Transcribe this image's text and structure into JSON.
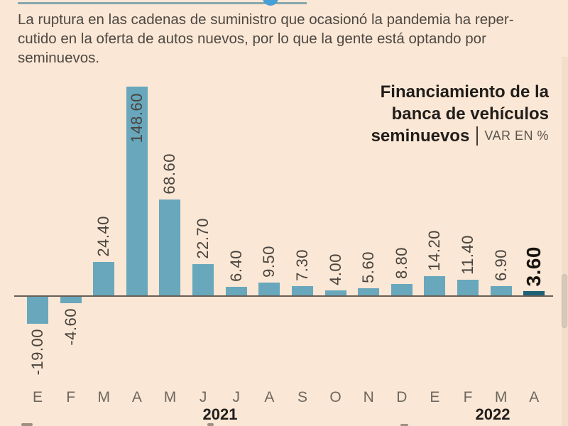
{
  "page": {
    "background_color": "#fae7d5",
    "accent_rule_color": "#87a7ae",
    "logo_dot_color": "#479fd8"
  },
  "intro": {
    "lines": [
      "La ruptura en las cadenas de suministro que ocasionó la pandemia ha reper-",
      "cutido en la oferta de autos nuevos, por lo que la gente está optando por",
      "seminuevos."
    ]
  },
  "chart": {
    "title_lines": [
      "Financiamiento de la",
      "banca de vehículos",
      "seminuevos"
    ],
    "unit_label": "VAR EN %",
    "colors": {
      "bar": "#68a7bc",
      "bar_highlight": "#1f6175",
      "axis": "#685f55",
      "value_label": "#4a443e",
      "value_label_highlight": "#17140f",
      "month_label": "#6e675f",
      "year_label": "#221e1b"
    }
  },
  "chart_data": {
    "type": "bar",
    "title": "Financiamiento de la banca de vehículos seminuevos",
    "subtitle": "VAR EN %",
    "categories": [
      "E",
      "F",
      "M",
      "A",
      "M",
      "J",
      "J",
      "A",
      "S",
      "O",
      "N",
      "D",
      "E",
      "F",
      "M",
      "A"
    ],
    "values": [
      -19.0,
      -4.6,
      24.4,
      148.6,
      68.6,
      22.7,
      6.4,
      9.5,
      7.3,
      4.0,
      5.6,
      8.8,
      14.2,
      11.4,
      6.9,
      3.6
    ],
    "value_labels": [
      "-19.00",
      "-4.60",
      "24.40",
      "148.60",
      "68.60",
      "22.70",
      "6.40",
      "9.50",
      "7.30",
      "4.00",
      "5.60",
      "8.80",
      "14.20",
      "11.40",
      "6.90",
      "3.60"
    ],
    "year_labels": [
      "2021",
      "2022"
    ],
    "highlight_index": 15,
    "inside_label_index": 3,
    "ylim": [
      -19,
      148.6
    ],
    "baseline": 0,
    "grid": false,
    "legend": false
  }
}
